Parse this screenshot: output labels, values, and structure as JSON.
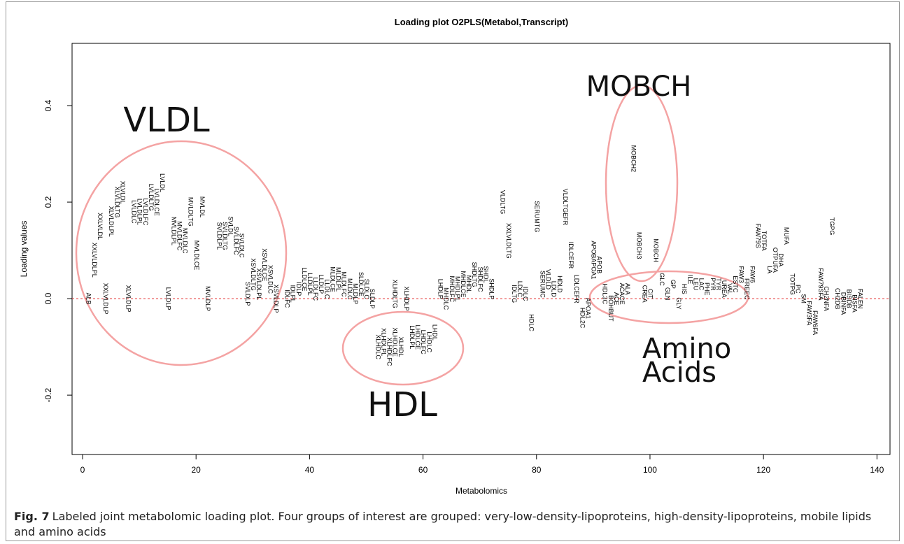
{
  "chart_data": {
    "type": "scatter",
    "title": "Loading plot O2PLS(Metabol,Transcript)",
    "x_label": "Metabolomics",
    "y_label": "Loading values",
    "xlim": [
      -1.85,
      142.3
    ],
    "ylim": [
      -0.323,
      0.529
    ],
    "xticks": [
      0,
      20,
      40,
      60,
      80,
      100,
      120,
      140
    ],
    "yticks": [
      -0.2,
      {
        "value": 0,
        "label": "0.0"
      },
      0.2,
      0.4
    ],
    "reference_line": 0,
    "reference_color": "#e53030",
    "color": "#000000",
    "annotations": [
      "VLDL",
      "MOBCH",
      "HDL",
      "Amino Acids"
    ],
    "labels": [
      "ALB",
      "XXLVLDLPL",
      "XXLVLDL",
      "XXLVLDLP",
      "XLVLDLPL",
      "XLVLDLTG",
      "XLVLDL",
      "XLVLDLP",
      "LVLDLC",
      "LVLDLPL",
      "LVLDLFC",
      "LVLDLTG",
      "LVLDLCE",
      "LVLDL",
      "LVLDLP",
      "MVLDLPL",
      "MVLDLFC",
      "MVLDLC",
      "MVLDLTG",
      "MVLDLCE",
      "MVLDL",
      "MVLDLP",
      "SVLDLPL",
      "SVLDLTG",
      "SVLDL",
      "SVLDLFC",
      "SVLDLC",
      "SVLDLP",
      "XSVLDLTG",
      "XSVLDLPL",
      "XSVLDLCE",
      "XSVLDLC",
      "XSVLDLP",
      "IDLFC",
      "IDLPL",
      "IDLP",
      "LLDLCE",
      "LLDLPL",
      "LLDLFC",
      "LLDLP",
      "LLDLC",
      "MLDLCE",
      "MLDLPL",
      "MLDLFC",
      "MLDLC",
      "MLDLP",
      "SLDLCE",
      "SLDLC",
      "SLDLP",
      "XLHDLC",
      "XLHDLPL",
      "XLHDLFC",
      "XLHDLTG",
      "XLHDLCE",
      "XLHDL",
      "XLHDLP",
      "LHDLPL",
      "LHDLCE",
      "LHDLFC",
      "LHDLC",
      "LHDL",
      "LHDLP",
      "MHDLC",
      "MHDLFC",
      "MHDLPL",
      "MHDLCE",
      "MHDL",
      "SHDLTG",
      "SHDLFC",
      "SHDL",
      "SHDLP",
      "VLDLTG",
      "XXLVLDLTG",
      "IDLTG",
      "LDLC",
      "IDLC",
      "HDLC",
      "SERUMTG",
      "SERUMC",
      "VLDLD",
      "LDLD",
      "HDLD",
      "VLDLTGEFR",
      "IDLCEFR",
      "LDLCEFR",
      "HDL2C",
      "APOA1",
      "APOBAPOA1",
      "APOB",
      "HDL3C",
      "BOHBUT",
      "ACE",
      "ACACE",
      "ALA",
      "MOBCH2",
      "MOBCH3",
      "CREA",
      "CIT",
      "MOBCH",
      "GLC",
      "GLN",
      "GP",
      "GLY",
      "HIS",
      "ILE",
      "LEU",
      "LAC",
      "PHE",
      "PYR",
      "TYR",
      "UREA",
      "VAL",
      "ESTC",
      "FAW3",
      "FREEC",
      "FAW6",
      "FAW79S",
      "TOTFA",
      "LA",
      "OTPUFA",
      "DHA",
      "MUFA",
      "TOTPG",
      "PC",
      "SM",
      "FAW3FA",
      "FAW6FA",
      "FAW79SFA",
      "CH2NFA",
      "TGPG",
      "CH2DB",
      "DBINFA",
      "BISDB",
      "BISFA",
      "FALEN"
    ],
    "x": [
      1,
      2,
      3,
      4,
      5,
      6,
      7,
      8,
      9,
      10,
      11,
      12,
      13,
      14,
      15,
      16,
      17,
      18,
      19,
      20,
      21,
      22,
      24,
      25,
      26,
      27,
      28,
      29,
      30,
      31,
      32,
      33,
      34,
      36,
      37,
      38,
      39,
      40,
      41,
      42,
      43,
      44,
      45,
      46,
      47,
      48,
      49,
      50,
      51,
      52,
      53,
      54,
      55,
      55,
      56,
      57,
      58,
      59,
      60,
      61,
      62,
      63,
      64,
      65,
      66,
      67,
      68,
      69,
      70,
      71,
      72,
      74,
      75,
      76,
      77,
      78,
      79,
      80,
      81,
      82,
      83,
      84,
      85,
      86,
      87,
      88,
      89,
      90,
      91,
      92,
      93,
      94,
      95,
      96,
      97,
      98,
      99,
      100,
      101,
      102,
      103,
      104,
      105,
      106,
      107,
      108,
      109,
      110,
      111,
      112,
      113,
      114,
      115,
      116,
      117,
      118,
      119,
      120,
      121,
      122,
      123,
      124,
      125,
      126,
      127,
      128,
      129,
      130,
      131,
      132,
      133,
      134,
      135,
      136,
      137
    ],
    "values": [
      0,
      0.08,
      0.15,
      0,
      0.16,
      0.2,
      0.22,
      0,
      0.18,
      0.18,
      0.18,
      0.21,
      0.2,
      0.24,
      0,
      0.14,
      0.13,
      0.12,
      0.18,
      0.09,
      0.19,
      0,
      0.13,
      0.13,
      0.15,
      0.12,
      0.11,
      0.01,
      0.05,
      0.03,
      0.07,
      0.04,
      0,
      0,
      0.01,
      0.02,
      0.04,
      0.03,
      0.02,
      0.03,
      0.02,
      0.04,
      0.04,
      0.03,
      0.02,
      0.01,
      0.03,
      0.02,
      0,
      -0.1,
      -0.09,
      -0.11,
      0.01,
      -0.09,
      -0.1,
      0,
      -0.08,
      -0.08,
      -0.09,
      -0.09,
      -0.07,
      0.02,
      0,
      0.02,
      0.02,
      0.03,
      0.03,
      0.05,
      0.04,
      0.05,
      0.02,
      0.2,
      0.12,
      0.01,
      0.02,
      0.01,
      -0.05,
      0.17,
      0.03,
      0.04,
      0.02,
      0.03,
      0.19,
      0.09,
      0.02,
      -0.04,
      -0.02,
      0.08,
      0.07,
      0.01,
      -0.02,
      0,
      0.01,
      0.02,
      0.29,
      0.11,
      0.01,
      0.01,
      0.1,
      0.04,
      0.01,
      0.03,
      -0.01,
      0.02,
      0.04,
      0.03,
      0.03,
      0.02,
      0.03,
      0.03,
      0.02,
      0.02,
      0.03,
      0.05,
      0.02,
      0.05,
      0.13,
      0.12,
      0.06,
      0.08,
      0.08,
      0.13,
      0.03,
      0.02,
      0,
      -0.03,
      -0.05,
      0.03,
      0,
      0.15,
      0,
      -0.01,
      0,
      -0.01,
      0
    ]
  },
  "caption": {
    "label": "Fig. 7",
    "text": "Labeled joint metabolomic loading plot. Four groups of interest are grouped: very-low-density-lipoproteins, high-density-lipoproteins, mobile lipids and amino acids"
  }
}
